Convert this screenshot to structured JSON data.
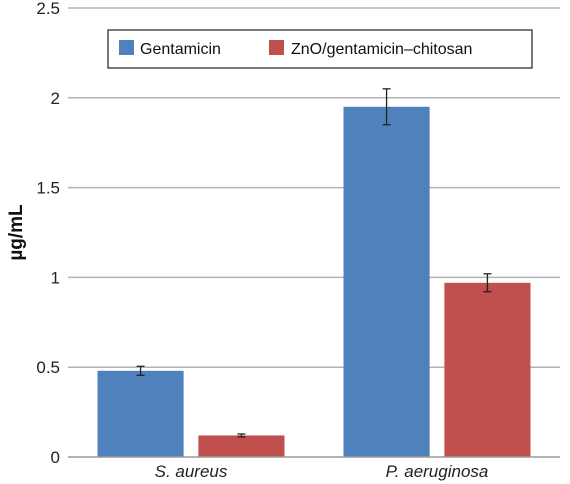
{
  "chart_data": {
    "type": "bar",
    "categories": [
      "S. aureus",
      "P. aeruginosa"
    ],
    "series": [
      {
        "name": "Gentamicin",
        "values": [
          0.48,
          1.95
        ],
        "errors": [
          0.025,
          0.1
        ],
        "color": "#4f81bd"
      },
      {
        "name": "ZnO/gentamicin–chitosan",
        "values": [
          0.12,
          0.97
        ],
        "errors": [
          0.008,
          0.05
        ],
        "color": "#c0504d"
      }
    ],
    "ylabel": "µg/mL",
    "ylim": [
      0,
      2.5
    ],
    "yticks": [
      0,
      0.5,
      1,
      1.5,
      2,
      2.5
    ],
    "ytick_labels": [
      "0",
      "0.5",
      "1",
      "1.5",
      "2",
      "2.5"
    ],
    "grid": true,
    "legend_position": "top"
  }
}
